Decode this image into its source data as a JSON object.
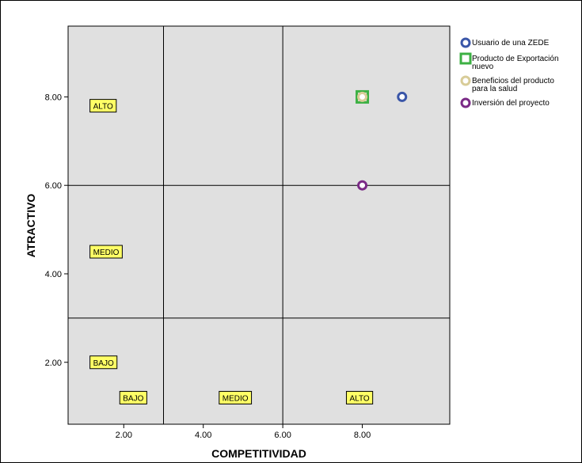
{
  "chart_data": {
    "type": "scatter",
    "xlabel": "COMPETITIVIDAD",
    "ylabel": "ATRACTIVO",
    "xlim": [
      0.6,
      10.2
    ],
    "ylim": [
      0.6,
      9.6
    ],
    "x_ticks": [
      2.0,
      4.0,
      6.0,
      8.0
    ],
    "y_ticks": [
      2.0,
      4.0,
      6.0,
      8.0
    ],
    "x_tick_labels": [
      "2.00",
      "4.00",
      "6.00",
      "8.00"
    ],
    "y_tick_labels": [
      "2.00",
      "4.00",
      "6.00",
      "8.00"
    ],
    "divider_x": [
      3.0,
      6.0
    ],
    "divider_y": [
      3.0,
      6.0
    ],
    "zone_labels": [
      {
        "text": "ALTO",
        "x": 1.15,
        "y": 7.8
      },
      {
        "text": "MEDIO",
        "x": 1.15,
        "y": 4.5
      },
      {
        "text": "BAJO",
        "x": 1.15,
        "y": 2.0
      },
      {
        "text": "BAJO",
        "x": 1.9,
        "y": 1.2
      },
      {
        "text": "MEDIO",
        "x": 4.4,
        "y": 1.2
      },
      {
        "text": "ALTO",
        "x": 7.6,
        "y": 1.2
      }
    ],
    "series": [
      {
        "name": "Usuario de una ZEDE",
        "x": [
          9.0
        ],
        "y": [
          8.0
        ],
        "color": "#3a56a8",
        "marker": "circle"
      },
      {
        "name": "Producto de Exportación nuevo",
        "x": [
          8.0
        ],
        "y": [
          8.0
        ],
        "color": "#3cb043",
        "marker": "square"
      },
      {
        "name": "Beneficios del producto para la salud",
        "x": [
          8.0
        ],
        "y": [
          8.0
        ],
        "color": "#d8cc98",
        "marker": "circle"
      },
      {
        "name": "Inversión del proyecto",
        "x": [
          8.0
        ],
        "y": [
          6.0
        ],
        "color": "#7a2a86",
        "marker": "circle"
      }
    ],
    "legend_lines": [
      [
        "Usuario de una ZEDE"
      ],
      [
        "Producto de Exportación",
        "nuevo"
      ],
      [
        "Beneficios del producto",
        "para la salud"
      ],
      [
        "Inversión del proyecto"
      ]
    ],
    "legend_position": "top-right",
    "grid": false,
    "plot_background": "#e0e0e0",
    "zone_label_background": "#ffff66"
  }
}
